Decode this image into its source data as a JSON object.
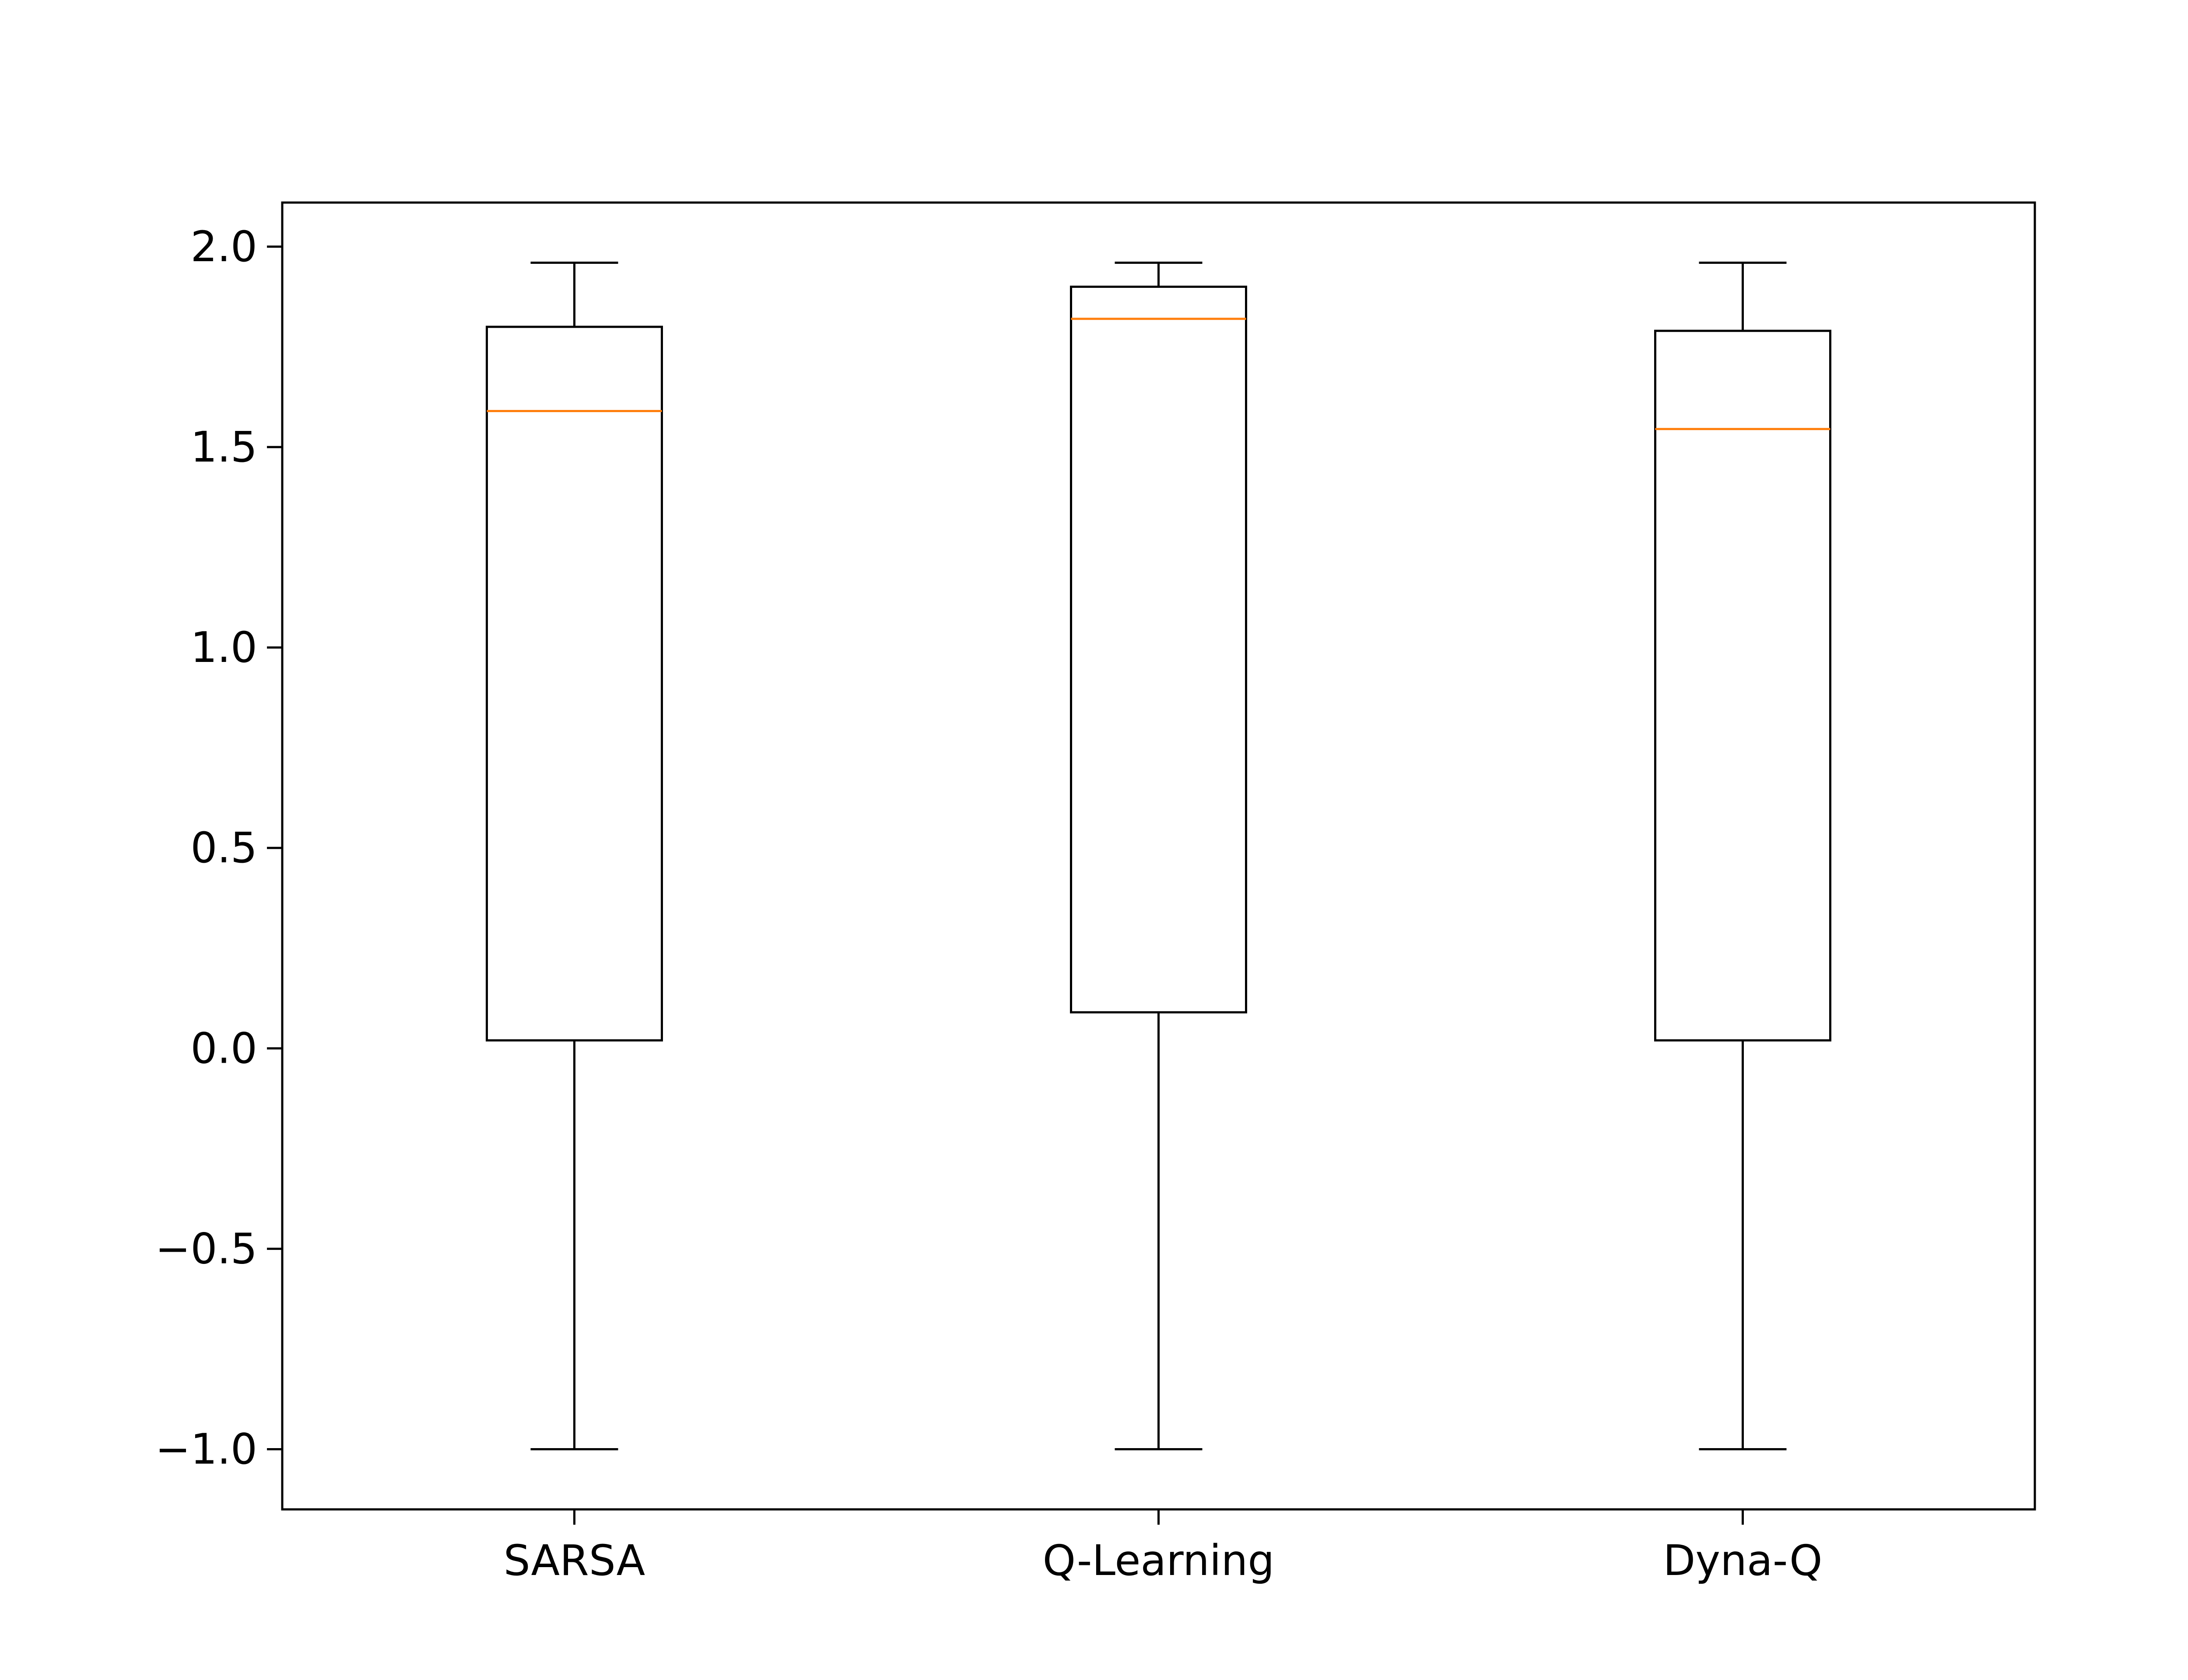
{
  "chart_data": {
    "type": "box",
    "categories": [
      "SARSA",
      "Q-Learning",
      "Dyna-Q"
    ],
    "boxes": [
      {
        "category": "SARSA",
        "whisker_low": -1.0,
        "q1": 0.02,
        "median": 1.59,
        "q3": 1.8,
        "whisker_high": 1.96
      },
      {
        "category": "Q-Learning",
        "whisker_low": -1.0,
        "q1": 0.09,
        "median": 1.82,
        "q3": 1.9,
        "whisker_high": 1.96
      },
      {
        "category": "Dyna-Q",
        "whisker_low": -1.0,
        "q1": 0.02,
        "median": 1.545,
        "q3": 1.79,
        "whisker_high": 1.96
      }
    ],
    "ylim": [
      -1.15,
      2.11
    ],
    "yticks": [
      -1.0,
      -0.5,
      0.0,
      0.5,
      1.0,
      1.5,
      2.0
    ],
    "ytick_labels": [
      "−1.0",
      "−0.5",
      "0.0",
      "0.5",
      "1.0",
      "1.5",
      "2.0"
    ],
    "grid": false,
    "title": "",
    "xlabel": "",
    "ylabel": "",
    "colors": {
      "box": "#000000",
      "median": "#ff7f0e",
      "whisker": "#000000",
      "axes": "#000000"
    }
  }
}
